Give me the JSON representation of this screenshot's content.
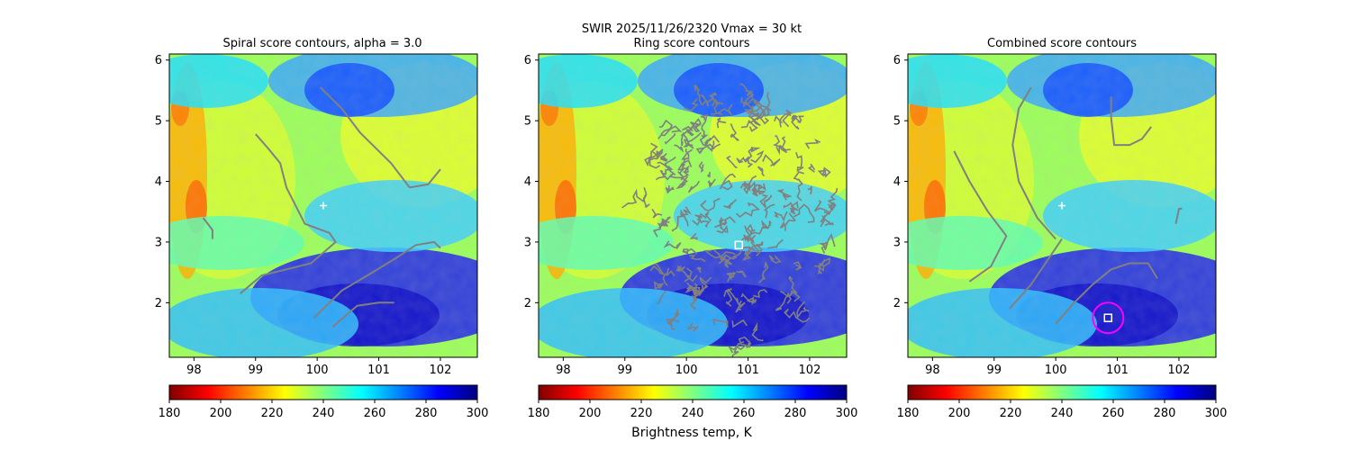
{
  "figure": {
    "suptitle_line1": "SWIR  2025/11/26/2320    Vmax = 30 kt",
    "colorbar_label": "Brightness temp, K"
  },
  "chart_data": [
    {
      "type": "heatmap",
      "title": "Spiral score contours, alpha =  3.0",
      "xlim": [
        97.6,
        102.6
      ],
      "ylim": [
        1.1,
        6.1
      ],
      "xticks": [
        "98",
        "99",
        "100",
        "101",
        "102"
      ],
      "yticks": [
        "2",
        "3",
        "4",
        "5",
        "6"
      ],
      "grid": false,
      "colormap": "jet",
      "center_marker": {
        "x": 100.1,
        "y": 3.6
      },
      "contours": [
        [
          [
            99.0,
            4.78
          ],
          [
            99.2,
            4.55
          ],
          [
            99.4,
            4.3
          ],
          [
            99.5,
            3.9
          ],
          [
            99.8,
            3.3
          ],
          [
            100.2,
            3.15
          ],
          [
            100.3,
            3.0
          ],
          [
            99.9,
            2.65
          ],
          [
            99.5,
            2.55
          ],
          [
            99.1,
            2.45
          ],
          [
            98.75,
            2.15
          ]
        ],
        [
          [
            98.15,
            3.4
          ],
          [
            98.3,
            3.2
          ],
          [
            98.3,
            3.05
          ]
        ],
        [
          [
            100.05,
            5.55
          ],
          [
            100.4,
            5.2
          ],
          [
            100.7,
            4.8
          ],
          [
            101.2,
            4.3
          ],
          [
            101.5,
            3.9
          ],
          [
            101.8,
            3.95
          ],
          [
            102.0,
            4.2
          ]
        ],
        [
          [
            99.95,
            1.75
          ],
          [
            100.4,
            2.2
          ],
          [
            100.9,
            2.5
          ],
          [
            101.3,
            2.75
          ],
          [
            101.6,
            2.95
          ],
          [
            101.9,
            3.0
          ],
          [
            102.0,
            2.9
          ]
        ],
        [
          [
            100.25,
            1.6
          ],
          [
            100.65,
            1.95
          ],
          [
            101.0,
            2.0
          ],
          [
            101.25,
            2.0
          ]
        ]
      ],
      "colorbar": {
        "ticks": [
          "180",
          "200",
          "220",
          "240",
          "260",
          "280",
          "300"
        ],
        "range": [
          180,
          300
        ]
      }
    },
    {
      "type": "heatmap",
      "title": "Ring score contours",
      "xlim": [
        97.6,
        102.6
      ],
      "ylim": [
        1.1,
        6.1
      ],
      "xticks": [
        "98",
        "99",
        "100",
        "101",
        "102"
      ],
      "yticks": [
        "2",
        "3",
        "4",
        "5",
        "6"
      ],
      "grid": false,
      "colormap": "jet",
      "center_marker": {
        "x": 100.85,
        "y": 2.95
      },
      "ring_region": {
        "cx": 100.8,
        "cy": 3.45,
        "rx": 1.55,
        "ry": 2.2
      },
      "colorbar": {
        "ticks": [
          "180",
          "200",
          "220",
          "240",
          "260",
          "280",
          "300"
        ],
        "range": [
          180,
          300
        ]
      }
    },
    {
      "type": "heatmap",
      "title": "Combined score contours",
      "xlim": [
        97.6,
        102.6
      ],
      "ylim": [
        1.1,
        6.1
      ],
      "xticks": [
        "98",
        "99",
        "100",
        "101",
        "102"
      ],
      "yticks": [
        "2",
        "3",
        "4",
        "5",
        "6"
      ],
      "grid": false,
      "colormap": "jet",
      "center_marker": {
        "x": 100.1,
        "y": 3.6
      },
      "best_center": {
        "x": 100.85,
        "y": 1.75
      },
      "contours": [
        [
          [
            98.35,
            4.5
          ],
          [
            98.6,
            4.0
          ],
          [
            98.9,
            3.5
          ],
          [
            99.2,
            3.1
          ],
          [
            98.95,
            2.6
          ],
          [
            98.6,
            2.35
          ]
        ],
        [
          [
            99.6,
            5.55
          ],
          [
            99.4,
            5.2
          ],
          [
            99.3,
            4.6
          ],
          [
            99.4,
            4.0
          ],
          [
            99.7,
            3.4
          ],
          [
            100.0,
            3.05
          ]
        ],
        [
          [
            99.25,
            1.9
          ],
          [
            99.6,
            2.3
          ],
          [
            99.9,
            2.75
          ],
          [
            100.1,
            3.05
          ]
        ],
        [
          [
            100.0,
            1.65
          ],
          [
            100.3,
            2.0
          ],
          [
            100.6,
            2.3
          ],
          [
            100.9,
            2.55
          ],
          [
            101.2,
            2.65
          ],
          [
            101.5,
            2.65
          ],
          [
            101.65,
            2.4
          ]
        ],
        [
          [
            101.55,
            4.9
          ],
          [
            101.4,
            4.7
          ],
          [
            101.2,
            4.6
          ],
          [
            100.95,
            4.6
          ],
          [
            100.9,
            5.05
          ],
          [
            100.9,
            5.4
          ]
        ],
        [
          [
            101.95,
            3.3
          ],
          [
            102.0,
            3.55
          ],
          [
            102.05,
            3.55
          ]
        ]
      ],
      "colorbar": {
        "ticks": [
          "180",
          "200",
          "220",
          "240",
          "260",
          "280",
          "300"
        ],
        "range": [
          180,
          300
        ]
      }
    }
  ]
}
